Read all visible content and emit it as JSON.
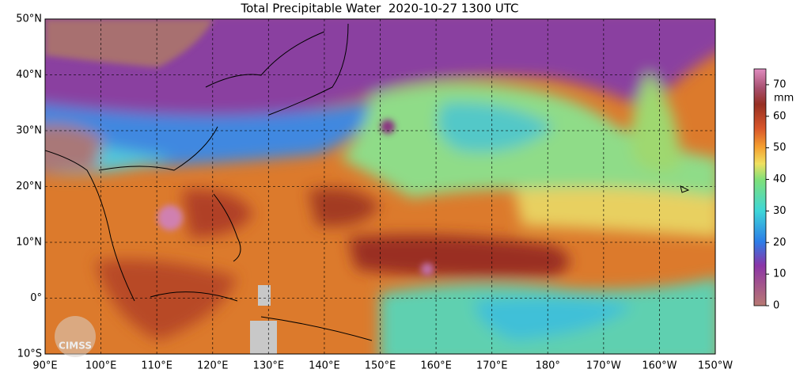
{
  "title": "Total Precipitable Water  2020-10-27 1300 UTC",
  "map": {
    "lat_lim": [
      -10,
      50
    ],
    "lon_lim": [
      90,
      -150
    ],
    "lat_ticks": [
      {
        "value": 50,
        "label": "50°N"
      },
      {
        "value": 40,
        "label": "40°N"
      },
      {
        "value": 30,
        "label": "30°N"
      },
      {
        "value": 20,
        "label": "20°N"
      },
      {
        "value": 10,
        "label": "10°N"
      },
      {
        "value": 0,
        "label": "0°"
      },
      {
        "value": -10,
        "label": "10°S"
      }
    ],
    "lon_ticks": [
      {
        "value": 90,
        "label": "90°E"
      },
      {
        "value": 100,
        "label": "100°E"
      },
      {
        "value": 110,
        "label": "110°E"
      },
      {
        "value": 120,
        "label": "120°E"
      },
      {
        "value": 130,
        "label": "130°E"
      },
      {
        "value": 140,
        "label": "140°E"
      },
      {
        "value": 150,
        "label": "150°E"
      },
      {
        "value": 160,
        "label": "160°E"
      },
      {
        "value": 170,
        "label": "170°E"
      },
      {
        "value": 180,
        "label": "180°"
      },
      {
        "value": -170,
        "label": "170°W"
      },
      {
        "value": -160,
        "label": "160°W"
      },
      {
        "value": -150,
        "label": "150°W"
      }
    ]
  },
  "colorbar": {
    "lim": [
      0,
      75
    ],
    "ticks": [
      0,
      10,
      20,
      30,
      40,
      50,
      60,
      70
    ],
    "unit": "mm"
  },
  "logo": "CIMSS"
}
